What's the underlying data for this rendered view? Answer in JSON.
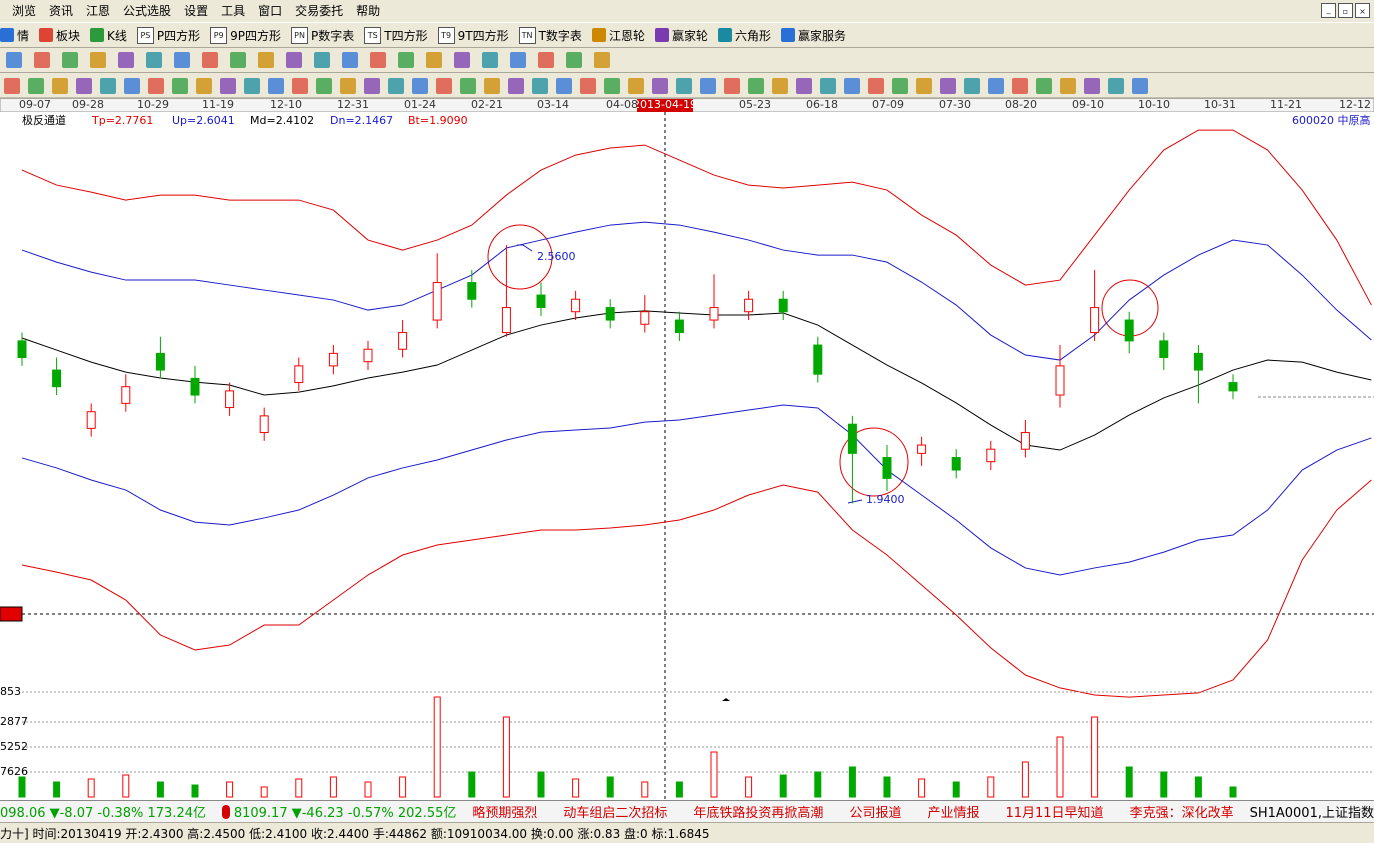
{
  "menu": [
    "浏览",
    "资讯",
    "江恩",
    "公式选股",
    "设置",
    "工具",
    "窗口",
    "交易委托",
    "帮助"
  ],
  "toolbar": [
    {
      "label": "情"
    },
    {
      "label": "板块"
    },
    {
      "label": "K线"
    },
    {
      "icon": "PS",
      "label": "P四方形"
    },
    {
      "icon": "P9",
      "label": "9P四方形"
    },
    {
      "icon": "PN",
      "label": "P数字表"
    },
    {
      "icon": "TS",
      "label": "T四方形"
    },
    {
      "icon": "T9",
      "label": "9T四方形"
    },
    {
      "icon": "TN",
      "label": "T数字表"
    },
    {
      "label": "江恩轮"
    },
    {
      "label": "赢家轮"
    },
    {
      "label": "六角形"
    },
    {
      "label": "赢家服务"
    }
  ],
  "date_axis": [
    "09-07",
    "09-28",
    "10-29",
    "11-19",
    "12-10",
    "12-31",
    "01-24",
    "02-21",
    "03-14",
    "04-08",
    "05-23",
    "06-18",
    "07-09",
    "07-30",
    "08-20",
    "09-10",
    "10-10",
    "10-31",
    "11-21",
    "12-12"
  ],
  "cursor_date": "2013-04-19",
  "indicator": {
    "name": "极反通道",
    "tp": "Tp=2.7761",
    "up": "Up=2.6041",
    "md": "Md=2.4102",
    "dn": "Dn=2.1467",
    "bt": "Bt=1.9090",
    "symbol": "600020 中原高"
  },
  "chart_data": {
    "type": "candlestick",
    "categories": [
      null,
      null,
      null,
      null,
      null,
      null,
      null,
      null,
      null,
      null,
      null,
      null,
      null,
      null,
      null,
      null,
      null,
      null,
      null,
      null,
      null,
      null,
      null,
      null,
      null,
      null,
      null,
      null,
      null,
      null,
      null,
      null,
      null,
      null,
      null,
      null,
      null,
      null,
      null,
      null
    ],
    "ylim": [
      1.492,
      2.877
    ],
    "up_color": "#ff0000",
    "down_color": "#00a800",
    "candles": {
      "open": [
        2.33,
        2.26,
        2.12,
        2.18,
        2.3,
        2.24,
        2.17,
        2.11,
        2.23,
        2.27,
        2.28,
        2.31,
        2.38,
        2.47,
        2.35,
        2.44,
        2.4,
        2.41,
        2.37,
        2.38,
        2.38,
        2.4,
        2.43,
        2.32,
        2.13,
        2.05,
        2.06,
        2.05,
        2.04,
        2.07,
        2.2,
        2.35,
        2.38,
        2.33,
        2.3,
        2.23,
        null,
        null,
        null,
        null
      ],
      "high": [
        2.35,
        2.29,
        2.18,
        2.25,
        2.34,
        2.27,
        2.23,
        2.17,
        2.29,
        2.32,
        2.33,
        2.38,
        2.54,
        2.5,
        2.56,
        2.47,
        2.45,
        2.43,
        2.44,
        2.4,
        2.49,
        2.45,
        2.45,
        2.34,
        2.15,
        2.08,
        2.1,
        2.07,
        2.09,
        2.14,
        2.32,
        2.5,
        2.4,
        2.35,
        2.32,
        2.25,
        null,
        null,
        null,
        null
      ],
      "low": [
        2.27,
        2.2,
        2.1,
        2.16,
        2.24,
        2.18,
        2.15,
        2.09,
        2.21,
        2.25,
        2.26,
        2.29,
        2.36,
        2.41,
        2.34,
        2.39,
        2.38,
        2.36,
        2.35,
        2.33,
        2.36,
        2.38,
        2.38,
        2.23,
        1.94,
        1.97,
        2.03,
        2.0,
        2.02,
        2.05,
        2.17,
        2.33,
        2.3,
        2.26,
        2.18,
        2.19,
        null,
        null,
        null,
        null
      ],
      "close": [
        2.29,
        2.22,
        2.16,
        2.22,
        2.26,
        2.2,
        2.21,
        2.15,
        2.27,
        2.3,
        2.31,
        2.35,
        2.47,
        2.43,
        2.41,
        2.41,
        2.43,
        2.38,
        2.4,
        2.35,
        2.41,
        2.43,
        2.4,
        2.25,
        2.06,
        2.0,
        2.08,
        2.02,
        2.07,
        2.11,
        2.27,
        2.41,
        2.33,
        2.29,
        2.26,
        2.21,
        null,
        null,
        null,
        null
      ]
    },
    "bands": [
      {
        "color": "#e00000",
        "values": [
          2.74,
          2.704,
          2.687,
          2.668,
          2.68,
          2.68,
          2.668,
          2.668,
          2.668,
          2.644,
          2.572,
          2.548,
          2.572,
          2.608,
          2.68,
          2.74,
          2.776,
          2.793,
          2.8,
          2.764,
          2.728,
          2.704,
          2.697,
          2.704,
          2.711,
          2.692,
          2.632,
          2.584,
          2.512,
          2.464,
          2.476,
          2.584,
          2.692,
          2.788,
          2.836,
          2.836,
          2.788,
          2.692,
          2.572,
          2.416
        ]
      },
      {
        "color": "#1a1acc",
        "values": [
          2.548,
          2.519,
          2.495,
          2.476,
          2.476,
          2.476,
          2.464,
          2.452,
          2.44,
          2.428,
          2.404,
          2.416,
          2.452,
          2.488,
          2.553,
          2.572,
          2.591,
          2.608,
          2.615,
          2.608,
          2.591,
          2.572,
          2.548,
          2.536,
          2.536,
          2.519,
          2.471,
          2.416,
          2.344,
          2.296,
          2.284,
          2.344,
          2.428,
          2.488,
          2.536,
          2.572,
          2.56,
          2.488,
          2.404,
          2.332
        ]
      },
      {
        "color": "#000000",
        "values": [
          2.337,
          2.308,
          2.279,
          2.255,
          2.241,
          2.231,
          2.224,
          2.2,
          2.207,
          2.222,
          2.241,
          2.255,
          2.272,
          2.308,
          2.344,
          2.368,
          2.385,
          2.397,
          2.402,
          2.397,
          2.392,
          2.392,
          2.397,
          2.368,
          2.32,
          2.272,
          2.229,
          2.181,
          2.128,
          2.08,
          2.068,
          2.104,
          2.152,
          2.193,
          2.224,
          2.26,
          2.284,
          2.279,
          2.255,
          2.236
        ]
      },
      {
        "color": "#1a1acc",
        "values": [
          2.049,
          2.025,
          1.996,
          1.972,
          1.924,
          1.895,
          1.888,
          1.905,
          1.924,
          1.96,
          2.001,
          2.025,
          2.044,
          2.068,
          2.092,
          2.111,
          2.116,
          2.121,
          2.135,
          2.14,
          2.152,
          2.164,
          2.176,
          2.169,
          2.104,
          2.02,
          1.96,
          1.9,
          1.833,
          1.785,
          1.768,
          1.785,
          1.799,
          1.823,
          1.852,
          1.864,
          1.924,
          2.02,
          2.068,
          2.097
        ]
      },
      {
        "color": "#e00000",
        "values": [
          1.792,
          1.775,
          1.756,
          1.708,
          1.624,
          1.588,
          1.6,
          1.648,
          1.648,
          1.708,
          1.768,
          1.816,
          1.84,
          1.852,
          1.864,
          1.876,
          1.876,
          1.881,
          1.888,
          1.9,
          1.924,
          1.96,
          1.984,
          1.967,
          1.876,
          1.816,
          1.744,
          1.672,
          1.593,
          1.528,
          1.497,
          1.48,
          1.475,
          1.48,
          1.485,
          1.516,
          1.612,
          1.804,
          1.924,
          1.996
        ]
      }
    ],
    "annotations": [
      "2.5600",
      "1.9400"
    ],
    "volume": {
      "ylim": [
        0,
        30500
      ],
      "values": [
        6100,
        4575,
        5490,
        6710,
        4575,
        3660,
        4575,
        3050,
        5490,
        6100,
        4575,
        6100,
        30500,
        7625,
        24400,
        7625,
        5490,
        6100,
        4575,
        4575,
        13725,
        6100,
        6710,
        7625,
        9150,
        6100,
        5490,
        4575,
        6100,
        10675,
        18300,
        24400,
        9150,
        7625,
        6100,
        3050
      ]
    },
    "volume_axis": [
      "853",
      "2877",
      "5252",
      "7626"
    ]
  },
  "ticker": {
    "index1": "098.06 ▼-8.07 -0.38% 173.24亿",
    "index2": "8109.17 ▼-46.23 -0.57% 202.55亿",
    "news": [
      "略预期强烈",
      "动车组启二次招标",
      "年底铁路投资再掀高潮",
      "公司报道",
      "产业情报",
      "11月11日早知道",
      "李克强：深化改革"
    ],
    "code": "SH1A0001,上证指数"
  },
  "status": "力十] 时间:20130419 开:2.4300 高:2.4500 低:2.4100 收:2.4400 手:44862 额:10910034.00 换:0.00 涨:0.83 盘:0 标:1.6845"
}
